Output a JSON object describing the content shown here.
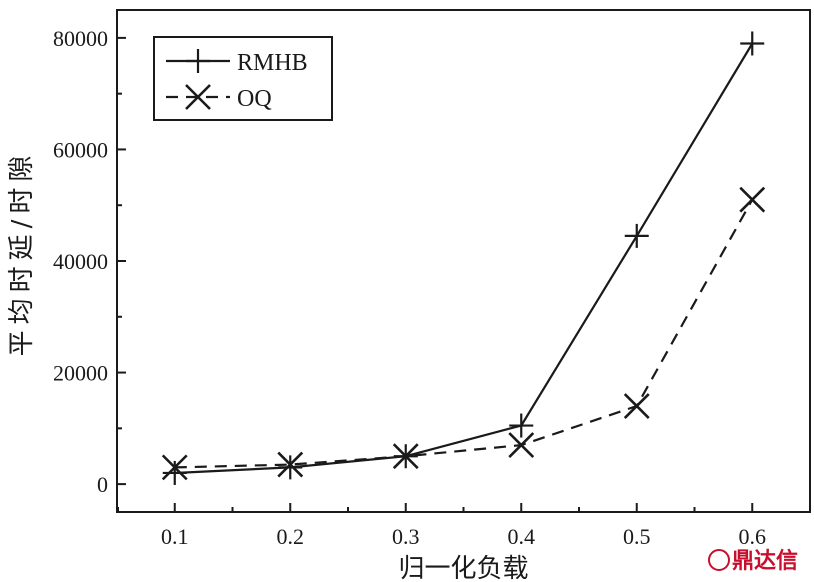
{
  "chart_data": {
    "type": "line",
    "title": "",
    "xlabel": "归一化负载",
    "ylabel": "平均时延/时隙",
    "x": [
      0.1,
      0.2,
      0.3,
      0.4,
      0.5,
      0.6
    ],
    "x_tick_labels": [
      "0.1",
      "0.2",
      "0.3",
      "0.4",
      "0.5",
      "0.6"
    ],
    "xlim": [
      0.05,
      0.65
    ],
    "y_ticks": [
      0,
      20000,
      40000,
      60000,
      80000
    ],
    "y_tick_labels": [
      "0",
      "20000",
      "40000",
      "60000",
      "80000"
    ],
    "ylim": [
      -5000,
      85000
    ],
    "grid": false,
    "legend_position": "top-left",
    "series": [
      {
        "name": "RMHB",
        "values": [
          2000,
          3000,
          5000,
          10500,
          44500,
          79000
        ],
        "line_style": "solid",
        "marker": "plus",
        "color": "#1a1a1a"
      },
      {
        "name": "OQ",
        "values": [
          3000,
          3500,
          5000,
          7000,
          14000,
          51000
        ],
        "line_style": "dashed",
        "marker": "x",
        "color": "#1a1a1a"
      }
    ]
  },
  "watermark": {
    "text": "鼎达信",
    "color": "#c8102e"
  }
}
